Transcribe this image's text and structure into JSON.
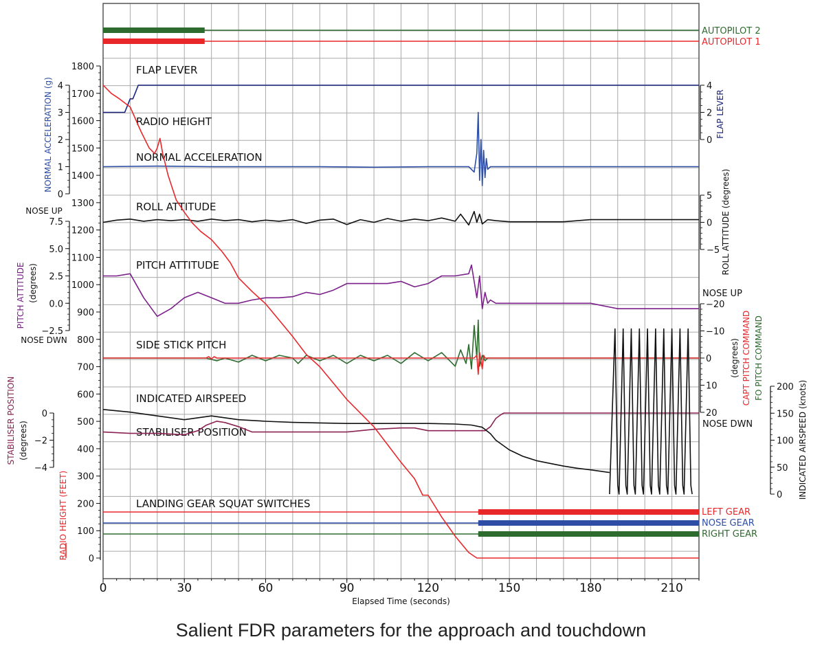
{
  "caption": "Salient FDR parameters for the approach and touchdown",
  "colors": {
    "grid": "#a8a8a8",
    "frame": "#555555",
    "red": "#e8272a",
    "blue": "#2e4ea6",
    "navy": "#1a237e",
    "green": "#2e6b2e",
    "purple": "#7b1f8a",
    "maroon": "#8b2252",
    "black": "#111111"
  },
  "chart_data": {
    "type": "line",
    "xlabel": "Elapsed Time (seconds)",
    "xlim": [
      0,
      220
    ],
    "x_ticks": [
      0,
      30,
      60,
      90,
      120,
      150,
      180,
      210
    ],
    "trace_labels": [
      "FLAP LEVER",
      "RADIO HEIGHT",
      "NORMAL ACCELERATION",
      "ROLL ATTITUDE",
      "PITCH ATTITUDE",
      "SIDE STICK PITCH",
      "INDICATED AIRSPEED",
      "STABILISER POSITION",
      "LANDING GEAR SQUAT SWITCHES"
    ],
    "axes": {
      "radio_height": {
        "label": "RADIO HEIGHT (FEET)",
        "ylim": [
          0,
          1800
        ],
        "ticks": [
          0,
          100,
          200,
          300,
          400,
          500,
          600,
          700,
          800,
          900,
          1000,
          1100,
          1200,
          1300,
          1400,
          1500,
          1600,
          1700,
          1800
        ]
      },
      "normal_acceleration": {
        "label": "NORMAL ACCELERATION (g)",
        "ticks": [
          0,
          1,
          2,
          3,
          4
        ]
      },
      "pitch_attitude": {
        "label": "PITCH ATTITUDE",
        "unit": "(degrees)",
        "ticks": [
          "7.5",
          "5.0",
          "2.5",
          "0.0",
          "−2.5"
        ],
        "top_note": "NOSE UP",
        "bottom_note": "NOSE DWN"
      },
      "stabiliser_position": {
        "label": "STABILISER POSITION",
        "unit": "(degrees)",
        "ticks": [
          "0",
          "−2",
          "−4"
        ]
      },
      "flap_lever": {
        "label": "FLAP LEVER",
        "ticks": [
          "4",
          "2",
          "0"
        ]
      },
      "roll_attitude": {
        "label": "ROLL ATTITUDE",
        "unit": "(degrees)",
        "ticks": [
          "5",
          "0",
          "−5"
        ]
      },
      "stick_pitch": {
        "label_capt": "CAPT PITCH COMMAND",
        "label_fo": "FO PITCH COMMAND",
        "unit": "(degrees)",
        "ticks": [
          "−20",
          "−10",
          "0",
          "10",
          "20"
        ],
        "top_note": "NOSE UP",
        "bottom_note": "NOSE DWN"
      },
      "indicated_airspeed": {
        "label": "INDICATED AIRSPEED (knots)",
        "ticks": [
          "200",
          "150",
          "100",
          "50",
          "0"
        ]
      }
    },
    "discretes": {
      "autopilot_2": {
        "name": "AUTOPILOT 2",
        "engaged": [
          [
            0,
            37.5
          ]
        ]
      },
      "autopilot_1": {
        "name": "AUTOPILOT 1",
        "engaged": [
          [
            0,
            37.5
          ]
        ]
      },
      "left_gear": {
        "name": "LEFT GEAR",
        "compressed": [
          [
            138.5,
            220
          ]
        ]
      },
      "nose_gear": {
        "name": "NOSE GEAR",
        "compressed": [
          [
            138.5,
            220
          ]
        ]
      },
      "right_gear": {
        "name": "RIGHT GEAR",
        "compressed": [
          [
            138.5,
            220
          ]
        ]
      }
    },
    "series": [
      {
        "name": "RADIO HEIGHT",
        "axis": "radio_height",
        "x": [
          0,
          3,
          6,
          10,
          14,
          17,
          19,
          20,
          21,
          22,
          24,
          27,
          30,
          33,
          36,
          40,
          44,
          47,
          50,
          55,
          60,
          65,
          70,
          75,
          80,
          85,
          90,
          95,
          100,
          105,
          110,
          115,
          118,
          120,
          125,
          130,
          135,
          138,
          140,
          145,
          150,
          160,
          180,
          200,
          220
        ],
        "values": [
          1730,
          1700,
          1680,
          1650,
          1560,
          1500,
          1480,
          1500,
          1535,
          1480,
          1400,
          1310,
          1265,
          1225,
          1195,
          1165,
          1120,
          1080,
          1025,
          975,
          930,
          870,
          810,
          745,
          700,
          640,
          580,
          530,
          480,
          415,
          350,
          290,
          230,
          230,
          150,
          80,
          20,
          0,
          0,
          0,
          0,
          0,
          0,
          0,
          0
        ]
      },
      {
        "name": "FLAP LEVER",
        "axis": "flap_lever",
        "x": [
          0,
          8,
          10,
          11,
          12,
          13,
          220
        ],
        "values": [
          2,
          2,
          3,
          3,
          3.5,
          4,
          4
        ]
      },
      {
        "name": "NORMAL ACCELERATION",
        "axis": "normal_acceleration",
        "x": [
          0,
          20,
          40,
          60,
          80,
          100,
          120,
          135,
          137,
          138,
          138.5,
          139,
          139.5,
          140,
          140.5,
          141,
          141.5,
          142,
          143,
          145,
          150,
          180,
          220
        ],
        "values": [
          1.0,
          1.02,
          1.0,
          1.0,
          1.0,
          0.98,
          1.0,
          1.0,
          0.8,
          1.5,
          3.0,
          0.5,
          2.0,
          0.3,
          1.6,
          0.6,
          1.3,
          0.9,
          1.0,
          1.0,
          1.0,
          1.0,
          1.0
        ]
      },
      {
        "name": "ROLL ATTITUDE",
        "axis": "roll_attitude",
        "x": [
          0,
          5,
          10,
          15,
          20,
          25,
          30,
          35,
          40,
          45,
          50,
          55,
          60,
          65,
          70,
          75,
          80,
          85,
          90,
          95,
          100,
          105,
          110,
          115,
          120,
          125,
          130,
          132,
          135,
          137,
          138,
          139,
          140,
          142,
          145,
          150,
          160,
          170,
          180,
          200,
          220
        ],
        "values": [
          0,
          0.4,
          0.6,
          0.2,
          0.5,
          0.3,
          0.5,
          0.2,
          0.6,
          0.3,
          0.5,
          0.1,
          0.4,
          0.2,
          0.5,
          -0.2,
          0.4,
          0.6,
          -0.4,
          0.5,
          0.0,
          0.7,
          0.2,
          0.6,
          0.3,
          0.8,
          0.2,
          1.5,
          -0.5,
          2.0,
          0.0,
          1.5,
          -0.3,
          0.5,
          0.3,
          0.1,
          0.1,
          0.1,
          0.5,
          0.5,
          0.5
        ]
      },
      {
        "name": "PITCH ATTITUDE",
        "axis": "pitch_attitude",
        "x": [
          0,
          5,
          10,
          15,
          20,
          25,
          30,
          35,
          40,
          45,
          50,
          55,
          60,
          65,
          70,
          75,
          80,
          85,
          90,
          95,
          100,
          105,
          110,
          115,
          120,
          125,
          130,
          135,
          136,
          138,
          139,
          140,
          141,
          142,
          143,
          145,
          150,
          160,
          170,
          180,
          190,
          200,
          210,
          220
        ],
        "values": [
          2.5,
          2.5,
          2.7,
          0.5,
          -1.2,
          -0.5,
          0.5,
          1.0,
          0.5,
          0.0,
          0.0,
          0.3,
          0.5,
          0.5,
          0.6,
          1.0,
          0.8,
          1.2,
          1.8,
          1.8,
          1.8,
          1.8,
          2.0,
          1.5,
          1.8,
          2.5,
          2.5,
          2.7,
          3.5,
          0.5,
          2.5,
          -0.5,
          1.0,
          0.0,
          0.3,
          0.0,
          0.0,
          0.0,
          0.0,
          0.0,
          -0.5,
          -0.5,
          -0.5,
          -0.5
        ]
      },
      {
        "name": "CAPT PITCH COMMAND",
        "axis": "stick_pitch",
        "x": [
          0,
          38,
          39,
          40,
          41,
          42,
          50,
          60,
          70,
          80,
          90,
          100,
          110,
          120,
          130,
          135,
          137,
          138,
          138.5,
          139,
          140,
          140.5,
          141,
          142,
          220
        ],
        "values": [
          0,
          0,
          -0.5,
          0.3,
          -0.5,
          0,
          0,
          0,
          0,
          0,
          0,
          0,
          0,
          0,
          0,
          0,
          0,
          -1,
          6,
          -2,
          4,
          -1,
          0,
          0,
          0
        ]
      },
      {
        "name": "FO PITCH COMMAND",
        "axis": "stick_pitch",
        "x": [
          0,
          38,
          42,
          45,
          50,
          55,
          60,
          65,
          70,
          72,
          75,
          80,
          85,
          90,
          95,
          100,
          105,
          110,
          115,
          120,
          125,
          130,
          132,
          134,
          135,
          136,
          137,
          138,
          138.5,
          139,
          140,
          141,
          142,
          220
        ],
        "values": [
          0,
          0,
          1,
          0,
          1.5,
          -1,
          1,
          -1,
          0,
          2,
          -1,
          1,
          -1,
          2,
          -1,
          1,
          -1,
          2,
          -2,
          1,
          -2,
          3,
          -3,
          2,
          -5,
          4,
          -12,
          0,
          -14,
          3,
          -1,
          1,
          0,
          0
        ]
      },
      {
        "name": "INDICATED AIRSPEED",
        "axis": "indicated_airspeed",
        "x": [
          0,
          10,
          20,
          30,
          40,
          50,
          60,
          70,
          80,
          90,
          100,
          110,
          120,
          130,
          136,
          140,
          143,
          145,
          150,
          155,
          160,
          165,
          170,
          175,
          180,
          187
        ],
        "values": [
          157,
          152,
          145,
          138,
          145,
          138,
          135,
          133,
          132,
          131,
          131,
          131,
          131,
          130,
          128,
          124,
          112,
          100,
          82,
          70,
          62,
          57,
          52,
          48,
          45,
          40
        ]
      },
      {
        "name": "STABILISER POSITION",
        "axis": "stabiliser_position",
        "x": [
          0,
          10,
          20,
          30,
          35,
          38,
          42,
          45,
          50,
          55,
          60,
          70,
          80,
          90,
          95,
          100,
          110,
          115,
          120,
          125,
          130,
          135,
          138,
          141,
          143,
          145,
          147,
          148,
          150,
          180,
          220
        ],
        "values": [
          -1.4,
          -1.5,
          -1.5,
          -1.6,
          -1.3,
          -0.9,
          -0.6,
          -0.7,
          -1.0,
          -1.4,
          -1.4,
          -1.4,
          -1.4,
          -1.4,
          -1.3,
          -1.2,
          -1.1,
          -1.1,
          -1.3,
          -1.3,
          -1.3,
          -1.3,
          -1.3,
          -1.3,
          -1.0,
          -0.4,
          -0.1,
          0,
          0,
          0,
          0
        ]
      },
      {
        "name": "INDICATED AIRSPEED (oscillation)",
        "axis": "oscillation",
        "x": [
          187,
          189,
          190,
          190.5,
          192,
          193,
          193.5,
          195,
          196,
          196.5,
          198,
          199,
          199.5,
          201,
          202,
          202.5,
          204,
          205,
          205.5,
          207,
          208,
          208.5,
          210,
          211,
          211.5,
          213,
          214,
          214.5,
          216,
          217,
          217.5
        ],
        "values": [
          0,
          0.95,
          0.05,
          0,
          0.95,
          0.05,
          0,
          0.95,
          0.05,
          0,
          0.95,
          0.05,
          0,
          0.95,
          0.05,
          0,
          0.95,
          0.05,
          0,
          0.95,
          0.05,
          0,
          0.95,
          0.05,
          0,
          0.95,
          0.05,
          0,
          0.95,
          0.05,
          0
        ]
      }
    ]
  }
}
